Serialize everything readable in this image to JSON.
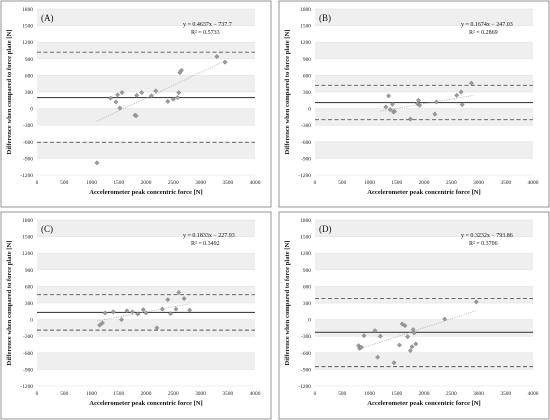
{
  "chart_data": [
    {
      "type": "scatter",
      "panel_label": "(A)",
      "xlabel": "Accelerometer peak concentric force [N]",
      "ylabel": "Difference when compared to force plate [N]",
      "xlim": [
        0,
        4000
      ],
      "ylim": [
        -1200,
        1800
      ],
      "x_ticks": [
        "0",
        "500",
        "1000",
        "1500",
        "2000",
        "2500",
        "3000",
        "3500",
        "4000"
      ],
      "y_ticks": [
        "-1200",
        "-900",
        "-600",
        "-300",
        "0",
        "300",
        "600",
        "900",
        "1200",
        "1500",
        "1800"
      ],
      "equation": "y = 0.4637x − 737.7",
      "r_squared": "R² = 0.5733",
      "mean_bias": 200,
      "loa_upper": 1020,
      "loa_lower": -610,
      "trend": {
        "slope": 0.4637,
        "intercept": -737.7,
        "x_range": [
          1100,
          3450
        ]
      },
      "points": [
        [
          1100,
          -980
        ],
        [
          1350,
          190
        ],
        [
          1450,
          120
        ],
        [
          1480,
          250
        ],
        [
          1520,
          10
        ],
        [
          1560,
          290
        ],
        [
          1800,
          -120
        ],
        [
          1820,
          -130
        ],
        [
          1830,
          240
        ],
        [
          1920,
          290
        ],
        [
          2100,
          230
        ],
        [
          2180,
          320
        ],
        [
          2400,
          130
        ],
        [
          2500,
          170
        ],
        [
          2580,
          200
        ],
        [
          2600,
          290
        ],
        [
          2620,
          650
        ],
        [
          2650,
          690
        ],
        [
          3300,
          940
        ],
        [
          3450,
          840
        ]
      ]
    },
    {
      "type": "scatter",
      "panel_label": "(B)",
      "xlabel": "Accelerometer peak concentric force [N]",
      "ylabel": "Difference when compared to force plate [N]",
      "xlim": [
        0,
        4000
      ],
      "ylim": [
        -1200,
        1800
      ],
      "x_ticks": [
        "0",
        "500",
        "1000",
        "1500",
        "2000",
        "2500",
        "3000",
        "3500",
        "4000"
      ],
      "y_ticks": [
        "-1200",
        "-900",
        "-600",
        "-300",
        "0",
        "300",
        "600",
        "900",
        "1200",
        "1500",
        "1800"
      ],
      "equation": "y = 0.1674x − 247.03",
      "r_squared": "R² = 0.2869",
      "mean_bias": 110,
      "loa_upper": 420,
      "loa_lower": -200,
      "trend": {
        "slope": 0.1674,
        "intercept": -247.03,
        "x_range": [
          1200,
          2900
        ]
      },
      "points": [
        [
          1300,
          30
        ],
        [
          1350,
          230
        ],
        [
          1380,
          -20
        ],
        [
          1420,
          80
        ],
        [
          1440,
          -60
        ],
        [
          1460,
          -50
        ],
        [
          1750,
          -190
        ],
        [
          1880,
          90
        ],
        [
          1900,
          150
        ],
        [
          1920,
          60
        ],
        [
          2200,
          -100
        ],
        [
          2230,
          120
        ],
        [
          2600,
          240
        ],
        [
          2680,
          300
        ],
        [
          2700,
          70
        ],
        [
          2870,
          460
        ]
      ]
    },
    {
      "type": "scatter",
      "panel_label": "(C)",
      "xlabel": "Accelerometer peak concentric force [N]",
      "ylabel": "Difference when compared to force plate [N]",
      "xlim": [
        0,
        4000
      ],
      "ylim": [
        -1200,
        1800
      ],
      "x_ticks": [
        "0",
        "500",
        "1000",
        "1500",
        "2000",
        "2500",
        "3000",
        "3500",
        "4000"
      ],
      "y_ticks": [
        "-1200",
        "-900",
        "-600",
        "-300",
        "0",
        "300",
        "600",
        "900",
        "1200",
        "1500",
        "1800"
      ],
      "equation": "y = 0.1833x − 227.93",
      "r_squared": "R² = 0.3492",
      "mean_bias": 130,
      "loa_upper": 450,
      "loa_lower": -190,
      "trend": {
        "slope": 0.1833,
        "intercept": -227.93,
        "x_range": [
          1100,
          2800
        ]
      },
      "points": [
        [
          1150,
          -100
        ],
        [
          1200,
          -60
        ],
        [
          1250,
          120
        ],
        [
          1400,
          140
        ],
        [
          1550,
          0
        ],
        [
          1650,
          160
        ],
        [
          1750,
          140
        ],
        [
          1850,
          100
        ],
        [
          1950,
          180
        ],
        [
          2000,
          120
        ],
        [
          2200,
          -150
        ],
        [
          2300,
          190
        ],
        [
          2400,
          360
        ],
        [
          2450,
          110
        ],
        [
          2550,
          190
        ],
        [
          2600,
          490
        ],
        [
          2700,
          380
        ],
        [
          2800,
          170
        ]
      ]
    },
    {
      "type": "scatter",
      "panel_label": "(D)",
      "xlabel": "Accelerometer peak concentric force [N]",
      "ylabel": "Difference when compared to force plate [N]",
      "xlim": [
        0,
        4000
      ],
      "ylim": [
        -1200,
        1800
      ],
      "x_ticks": [
        "0",
        "500",
        "1000",
        "1500",
        "2000",
        "2500",
        "3000",
        "3500",
        "4000"
      ],
      "y_ticks": [
        "-1200",
        "-900",
        "-600",
        "-300",
        "0",
        "300",
        "600",
        "900",
        "1200",
        "1500",
        "1800"
      ],
      "equation": "y = 0.3232x − 793.86",
      "r_squared": "R² = 0.3706",
      "mean_bias": -230,
      "loa_upper": 380,
      "loa_lower": -850,
      "trend": {
        "slope": 0.3232,
        "intercept": -793.86,
        "x_range": [
          800,
          2950
        ]
      },
      "points": [
        [
          800,
          -470
        ],
        [
          820,
          -520
        ],
        [
          850,
          -500
        ],
        [
          900,
          -290
        ],
        [
          1100,
          -200
        ],
        [
          1150,
          -680
        ],
        [
          1200,
          -300
        ],
        [
          1450,
          -780
        ],
        [
          1550,
          -460
        ],
        [
          1600,
          -80
        ],
        [
          1650,
          -110
        ],
        [
          1700,
          -310
        ],
        [
          1750,
          -560
        ],
        [
          1780,
          -490
        ],
        [
          1800,
          -180
        ],
        [
          1820,
          -240
        ],
        [
          1850,
          -440
        ],
        [
          2380,
          10
        ],
        [
          2960,
          320
        ]
      ]
    }
  ]
}
